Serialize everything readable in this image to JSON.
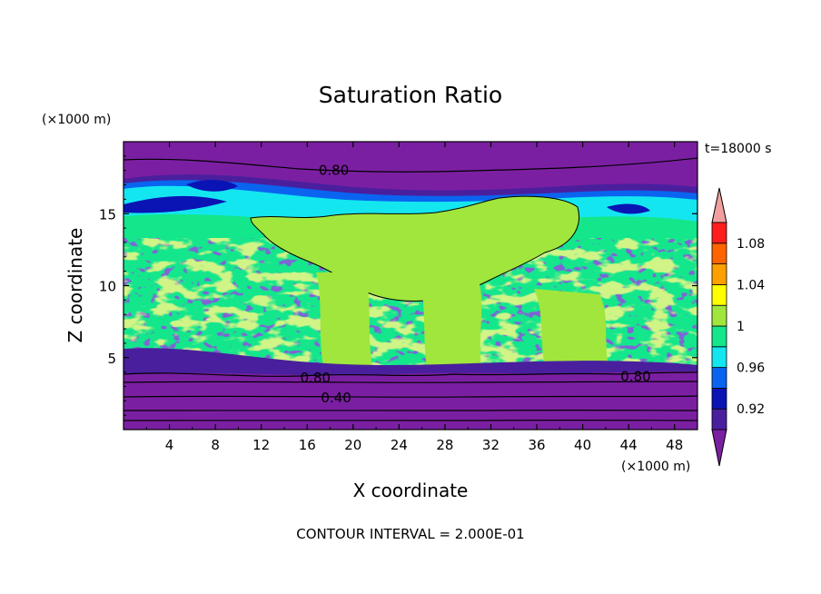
{
  "chart_data": {
    "type": "heatmap",
    "title": "Saturation Ratio",
    "xlabel": "X coordinate",
    "ylabel": "Z coordinate",
    "x_unit": "(×1000 m)",
    "y_unit": "(×1000 m)",
    "time_label": "t=18000 s",
    "footer": "CONTOUR INTERVAL = 2.000E-01",
    "xlim": [
      0,
      50
    ],
    "ylim": [
      0,
      20
    ],
    "x_ticks": [
      "4",
      "8",
      "12",
      "16",
      "20",
      "24",
      "28",
      "32",
      "36",
      "40",
      "44",
      "48"
    ],
    "y_ticks": [
      "5",
      "10",
      "15"
    ],
    "contour_labels": [
      {
        "text": "0.80",
        "x": 17.0,
        "z": 18.0
      },
      {
        "text": "0.80",
        "x": 15.4,
        "z": 3.6
      },
      {
        "text": "0.40",
        "x": 17.2,
        "z": 2.2
      },
      {
        "text": "0.80",
        "x": 43.3,
        "z": 3.7
      }
    ],
    "colorbar": {
      "levels": [
        "0.92",
        "0.96",
        "1",
        "1.04",
        "1.08"
      ],
      "bins": [
        {
          "label": "< 0.90",
          "color": "#7b1fa2"
        },
        {
          "label": "0.90–0.92",
          "color": "#4a1f9e"
        },
        {
          "label": "0.92–0.94",
          "color": "#0a14b4"
        },
        {
          "label": "0.94–0.96",
          "color": "#0a64f0"
        },
        {
          "label": "0.96–0.98",
          "color": "#14e6f0"
        },
        {
          "label": "0.98–1.00",
          "color": "#14e68c"
        },
        {
          "label": "1.00–1.02",
          "color": "#a0e63c"
        },
        {
          "label": "1.02–1.04",
          "color": "#ffff00"
        },
        {
          "label": "1.04–1.06",
          "color": "#ffa000"
        },
        {
          "label": "1.06–1.08",
          "color": "#ff6400"
        },
        {
          "label": "1.08–1.10",
          "color": "#ff1e1e"
        },
        {
          "label": "> 1.10",
          "color": "#f0a0a0"
        }
      ]
    },
    "regions": [
      {
        "name": "upper-dry-layer",
        "z_range": [
          17.0,
          20.0
        ],
        "value": "< 0.90"
      },
      {
        "name": "near-saturated-core",
        "x_range": [
          8.0,
          31.0
        ],
        "z_range": [
          10.5,
          15.0
        ],
        "value": "1.00–1.02"
      },
      {
        "name": "lower-dry-layer",
        "z_range": [
          0.0,
          4.0
        ],
        "value": "< 0.90"
      }
    ]
  }
}
